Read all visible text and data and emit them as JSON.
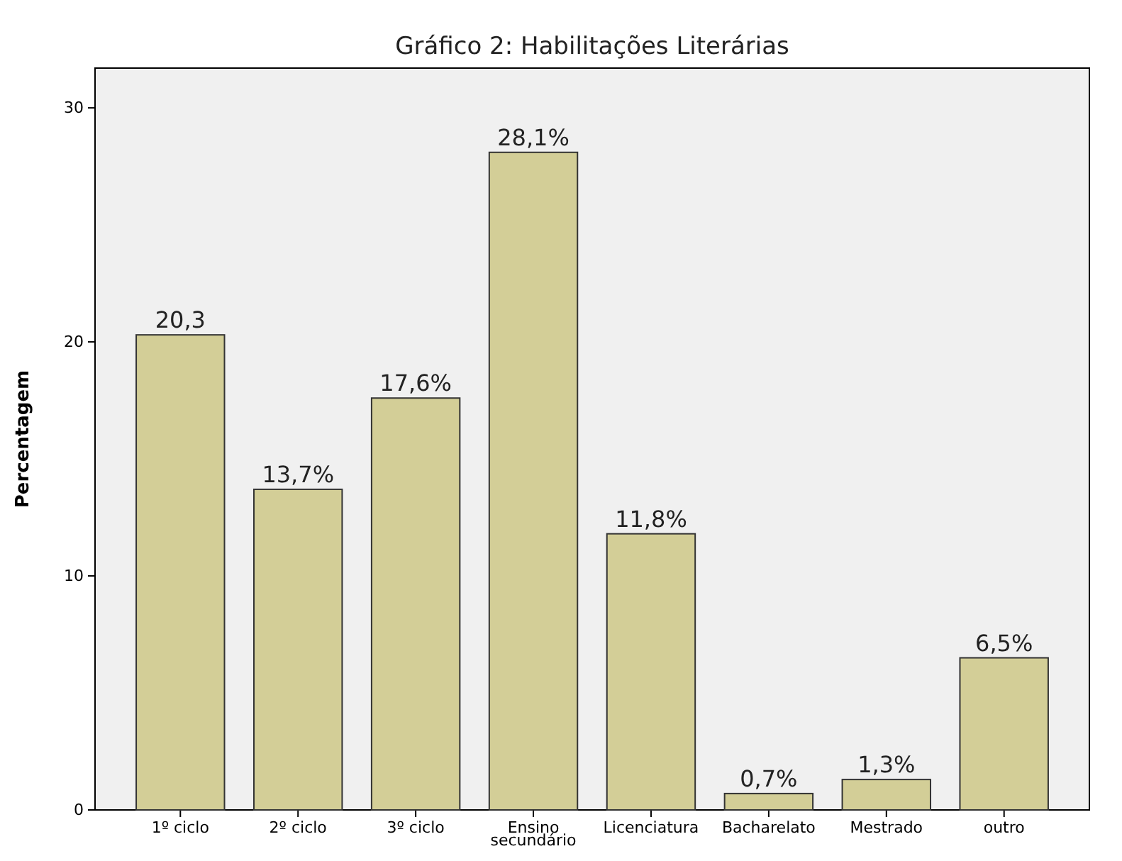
{
  "chart_data": {
    "type": "bar",
    "title": "Gráfico 2: Habilitações Literárias",
    "ylabel": "Percentagem",
    "categories": [
      "1º ciclo",
      "2º ciclo",
      "3º ciclo",
      "Ensino secundário",
      "Licenciatura",
      "Bacharelato",
      "Mestrado",
      "outro"
    ],
    "values": [
      20.3,
      13.7,
      17.6,
      28.1,
      11.8,
      0.7,
      1.3,
      6.5
    ],
    "value_labels": [
      "20,3",
      "13,7%",
      "17,6%",
      "28,1%",
      "11,8%",
      "0,7%",
      "1,3%",
      "6,5%"
    ],
    "color": "#d3ce97",
    "ylim": [
      0,
      31.7
    ],
    "yticks": [
      0,
      10,
      20,
      30
    ],
    "grid": false
  }
}
